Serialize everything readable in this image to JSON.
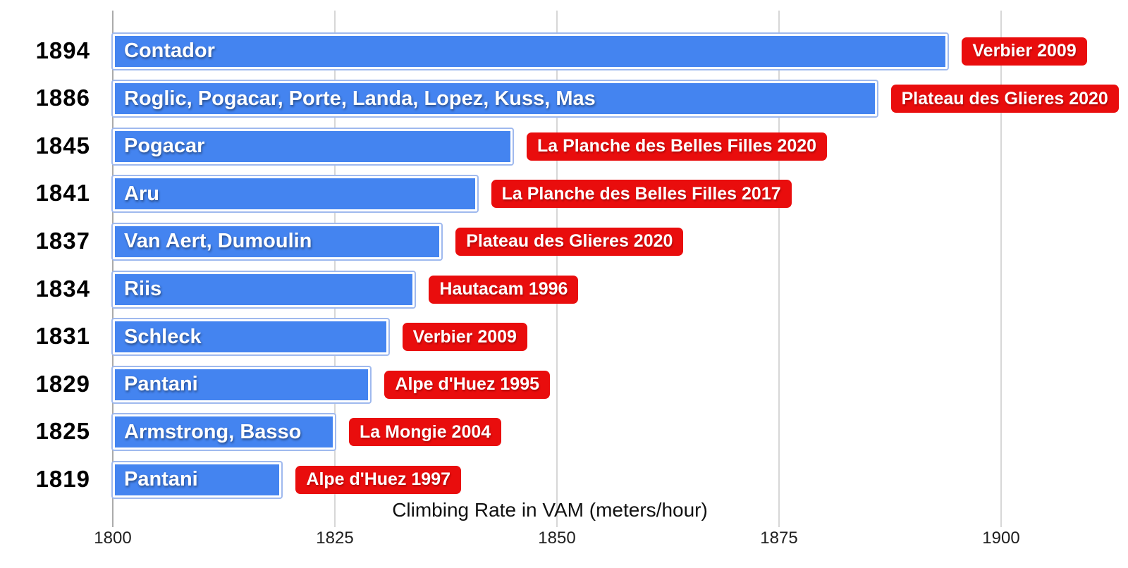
{
  "chart_data": {
    "type": "bar",
    "orientation": "horizontal",
    "xlabel": "Climbing Rate in VAM (meters/hour)",
    "x_ticks": [
      1800,
      1825,
      1850,
      1875,
      1900
    ],
    "xlim": [
      1800,
      1914
    ],
    "grid": "vertical",
    "rows": [
      {
        "value": 1894,
        "riders": "Contador",
        "badge": "Verbier 2009"
      },
      {
        "value": 1886,
        "riders": "Roglic, Pogacar, Porte, Landa, Lopez, Kuss, Mas",
        "badge": "Plateau des Glieres 2020"
      },
      {
        "value": 1845,
        "riders": "Pogacar",
        "badge": "La Planche des Belles Filles 2020"
      },
      {
        "value": 1841,
        "riders": "Aru",
        "badge": "La Planche des Belles Filles 2017"
      },
      {
        "value": 1837,
        "riders": "Van Aert, Dumoulin",
        "badge": "Plateau des Glieres 2020"
      },
      {
        "value": 1834,
        "riders": "Riis",
        "badge": "Hautacam 1996"
      },
      {
        "value": 1831,
        "riders": "Schleck",
        "badge": "Verbier 2009"
      },
      {
        "value": 1829,
        "riders": "Pantani",
        "badge": "Alpe d'Huez 1995"
      },
      {
        "value": 1825,
        "riders": "Armstrong, Basso",
        "badge": "La Mongie 2004"
      },
      {
        "value": 1819,
        "riders": "Pantani",
        "badge": "Alpe d'Huez 1997"
      }
    ],
    "colors": {
      "bar_fill": "#4484F0",
      "bar_outline": "#9FB9EE",
      "bar_border": "#FFFFFF",
      "badge_bg": "#E90D0D",
      "badge_text": "#FFFFFF",
      "bar_text": "#FFFFFF",
      "value_text": "#000000",
      "grid": "#D7D7D7",
      "axis": "#ABABAB"
    }
  }
}
